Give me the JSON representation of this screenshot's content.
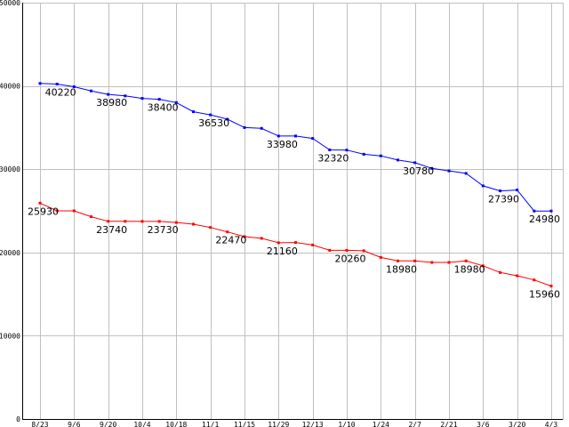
{
  "chart_data": {
    "type": "line",
    "title": "",
    "xlabel": "",
    "ylabel": "",
    "ylim": [
      0,
      50000
    ],
    "y_ticks": [
      0,
      10000,
      20000,
      30000,
      40000,
      50000
    ],
    "y_tick_labels": [
      "0",
      "10000",
      "20000",
      "30000",
      "40000",
      "50000"
    ],
    "x_tick_labels": [
      "8/23",
      "9/6",
      "9/20",
      "10/4",
      "10/18",
      "11/1",
      "11/15",
      "11/29",
      "12/13",
      "1/10",
      "1/24",
      "2/7",
      "2/21",
      "3/6",
      "3/20",
      "4/3"
    ],
    "x_tick_positions": [
      0,
      2,
      4,
      6,
      8,
      10,
      12,
      14,
      16,
      18,
      20,
      22,
      24,
      26,
      28,
      30
    ],
    "x_points": 31,
    "grid": true,
    "series": [
      {
        "color": "#0000ff",
        "values": [
          40300,
          40220,
          39900,
          39400,
          38980,
          38800,
          38500,
          38400,
          38000,
          36900,
          36530,
          36000,
          35000,
          34900,
          33980,
          33980,
          33700,
          32320,
          32300,
          31800,
          31600,
          31100,
          30780,
          30100,
          29800,
          29500,
          28000,
          27390,
          27500,
          24980,
          24980
        ],
        "labels": [
          {
            "i": 1,
            "text": "40220"
          },
          {
            "i": 4,
            "text": "38980"
          },
          {
            "i": 7,
            "text": "38400"
          },
          {
            "i": 10,
            "text": "36530"
          },
          {
            "i": 14,
            "text": "33980"
          },
          {
            "i": 17,
            "text": "32320"
          },
          {
            "i": 22,
            "text": "30780"
          },
          {
            "i": 27,
            "text": "27390"
          },
          {
            "i": 30,
            "text": "24980"
          }
        ]
      },
      {
        "color": "#ff0000",
        "values": [
          25930,
          25000,
          25000,
          24300,
          23740,
          23740,
          23730,
          23730,
          23600,
          23400,
          23000,
          22470,
          21900,
          21700,
          21160,
          21200,
          20900,
          20260,
          20260,
          20200,
          19400,
          18980,
          18980,
          18800,
          18800,
          18980,
          18400,
          17600,
          17200,
          16700,
          15960
        ],
        "labels": [
          {
            "i": 0,
            "text": "25930"
          },
          {
            "i": 4,
            "text": "23740"
          },
          {
            "i": 7,
            "text": "23730"
          },
          {
            "i": 11,
            "text": "22470"
          },
          {
            "i": 14,
            "text": "21160"
          },
          {
            "i": 18,
            "text": "20260"
          },
          {
            "i": 21,
            "text": "18980"
          },
          {
            "i": 25,
            "text": "18980"
          },
          {
            "i": 30,
            "text": "15960"
          }
        ]
      }
    ]
  }
}
